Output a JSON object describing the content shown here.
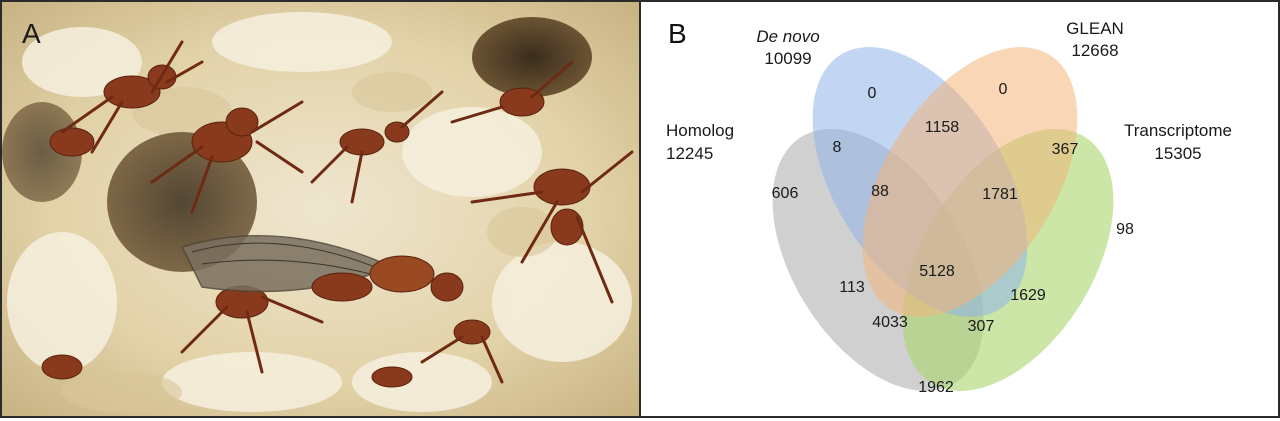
{
  "panel_a": {
    "label": "A",
    "photo_subject": "leafcutter ants around a winged queen on fungus garden"
  },
  "panel_b": {
    "label": "B",
    "sets": [
      {
        "name": "De novo",
        "count": "10099",
        "color": "#8fb2ea"
      },
      {
        "name": "GLEAN",
        "count": "12668",
        "color": "#f3b47a"
      },
      {
        "name": "Homolog",
        "count": "12245",
        "color": "#a9a9a9"
      },
      {
        "name": "Transcriptome",
        "count": "15305",
        "color": "#a9d66a"
      }
    ],
    "regions": {
      "denovo_only": "0",
      "glean_only": "0",
      "homolog_only": "606",
      "transcriptome_only": "98",
      "homolog_denovo": "8",
      "denovo_glean": "1158",
      "glean_transcriptome": "367",
      "homolog_denovo_glean": "88",
      "denovo_glean_transcriptome": "1781",
      "all_four": "5128",
      "homolog_glean": "113",
      "homolog_glean_transcriptome": "4033",
      "homolog_transcriptome": "1962",
      "homolog_denovo_transcriptome": "307",
      "denovo_transcriptome": "1629"
    }
  }
}
